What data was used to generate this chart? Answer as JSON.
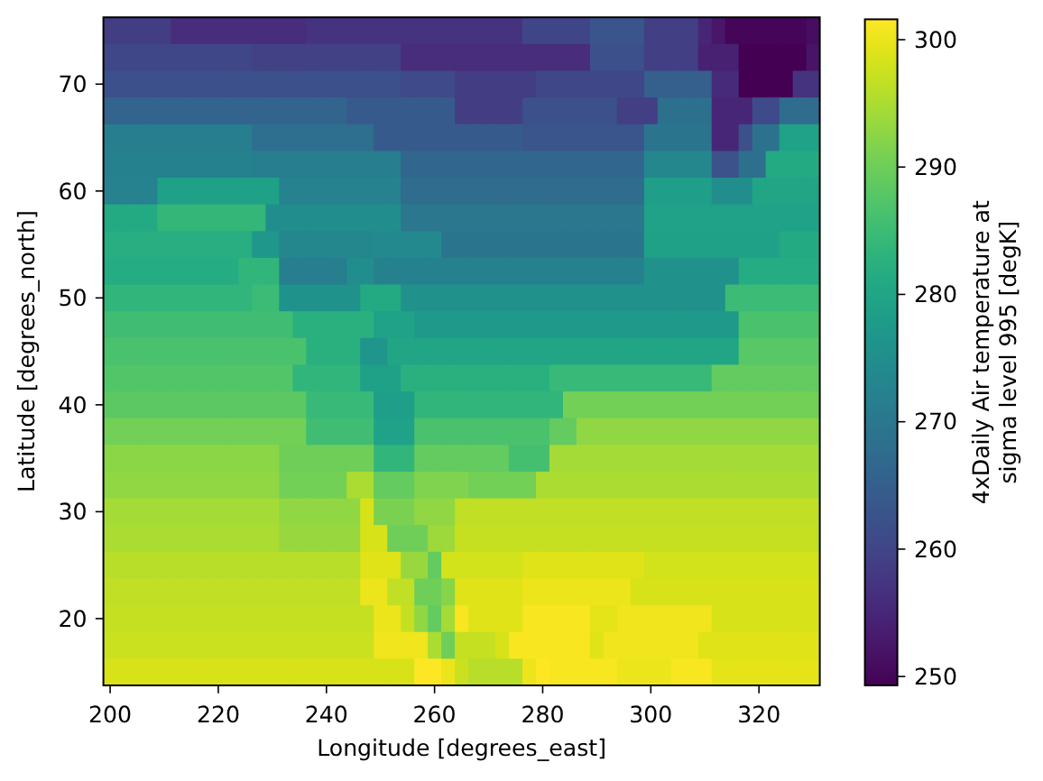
{
  "chart_data": {
    "type": "heatmap",
    "xlabel": "Longitude [degrees_east]",
    "ylabel": "Latitude [degrees_north]",
    "clabel": "4xDaily Air temperature at sigma level 995 [degK]",
    "categories": [
      "200",
      null,
      null,
      null,
      null,
      null,
      null,
      null,
      "220",
      null,
      null,
      null,
      null,
      null,
      null,
      null,
      "240",
      null,
      null,
      null,
      null,
      null,
      null,
      null,
      "260",
      null,
      null,
      null,
      null,
      null,
      null,
      null,
      "280",
      null,
      null,
      null,
      null,
      null,
      null,
      null,
      "300",
      null,
      null,
      null,
      null,
      null,
      null,
      null,
      "320",
      null,
      null,
      null,
      null
    ],
    "y_categories": [
      null,
      null,
      "70",
      null,
      null,
      null,
      "60",
      null,
      null,
      null,
      "50",
      null,
      null,
      null,
      "40",
      null,
      null,
      null,
      "30",
      null,
      null,
      null,
      "20",
      null,
      null
    ],
    "clim": [
      249.3,
      301.6
    ],
    "cticks": [
      250,
      260,
      270,
      280,
      290,
      300
    ],
    "cells": [
      [
        258.5,
        258.5,
        258.5,
        258.5,
        258.5,
        256,
        256,
        256,
        256,
        256,
        256,
        256,
        256,
        256,
        256,
        257,
        257,
        257,
        257,
        257,
        257,
        257,
        257,
        257,
        257,
        257,
        257,
        257,
        257,
        257,
        257,
        260,
        260,
        260,
        260,
        260,
        263,
        263,
        263,
        263,
        259,
        259,
        259,
        259,
        255,
        252.5,
        250,
        250,
        250,
        250,
        250,
        250,
        251
      ],
      [
        260.5,
        260.5,
        260.5,
        260.5,
        260.5,
        260.5,
        260.5,
        260.5,
        260.5,
        260.5,
        260.5,
        259.5,
        259.5,
        259.5,
        259.5,
        259.5,
        259.5,
        259.5,
        259.5,
        259.5,
        259.5,
        259.5,
        256,
        256,
        256,
        256,
        256,
        256,
        256,
        256,
        256,
        256,
        256,
        256,
        256,
        256,
        262,
        262,
        262,
        262,
        259,
        259,
        259,
        259,
        254,
        254,
        254,
        249.5,
        249.5,
        249.5,
        249.5,
        249.5,
        252
      ],
      [
        262,
        262,
        262,
        262,
        262,
        262,
        262,
        262,
        262,
        262,
        262,
        262,
        262,
        262,
        262,
        262,
        262,
        262,
        262,
        262,
        262,
        262,
        261,
        261,
        261,
        261,
        258.5,
        258.5,
        258.5,
        258.5,
        258.5,
        258.5,
        260.5,
        260.5,
        260.5,
        260.5,
        260.5,
        260.5,
        260.5,
        260.5,
        265,
        265,
        265,
        265,
        265,
        255.5,
        255.5,
        249.5,
        249.5,
        249.5,
        249.5,
        257,
        257
      ],
      [
        266,
        266,
        266,
        266,
        266,
        266,
        266,
        266,
        266,
        266,
        266,
        266,
        266,
        266,
        266,
        266,
        266,
        266,
        264,
        264,
        264,
        264,
        264,
        264,
        264,
        264,
        258.5,
        258.5,
        258.5,
        258.5,
        258.5,
        262,
        262,
        262,
        262,
        262,
        262,
        262,
        259,
        259,
        259,
        268.5,
        268.5,
        268.5,
        268.5,
        255,
        255,
        255,
        261,
        261,
        267.5,
        267.5,
        267.5
      ],
      [
        271.5,
        271.5,
        271.5,
        271.5,
        271.5,
        271.5,
        271.5,
        271.5,
        271.5,
        271.5,
        271.5,
        268,
        268,
        268,
        268,
        268,
        268,
        268,
        268,
        268,
        264,
        264,
        264,
        264,
        264,
        264,
        264,
        264,
        264,
        264,
        264,
        263,
        263,
        263,
        263,
        263,
        263,
        263,
        263,
        263,
        269.5,
        269.5,
        269.5,
        269.5,
        269.5,
        255,
        255,
        262,
        269,
        269,
        279.5,
        279.5,
        279.5
      ],
      [
        272,
        272,
        272,
        272,
        272,
        272,
        272,
        272,
        272,
        272,
        272,
        271.5,
        271.5,
        271.5,
        271.5,
        271.5,
        271.5,
        271.5,
        271.5,
        271.5,
        271.5,
        271.5,
        266.5,
        266.5,
        266.5,
        266.5,
        266.5,
        266.5,
        266.5,
        266.5,
        266.5,
        266.5,
        266.5,
        266.5,
        266.5,
        266.5,
        266.5,
        266.5,
        266.5,
        266.5,
        273.5,
        273.5,
        273.5,
        273.5,
        273.5,
        262.5,
        262.5,
        268.5,
        268.5,
        281,
        281,
        281,
        281
      ],
      [
        272.5,
        272.5,
        272.5,
        272.5,
        279,
        279,
        279,
        279,
        279,
        279,
        279,
        279,
        279,
        272.5,
        272.5,
        272.5,
        272.5,
        272.5,
        272.5,
        272.5,
        272.5,
        272.5,
        267.5,
        267.5,
        267.5,
        267.5,
        267.5,
        267.5,
        267.5,
        267.5,
        267.5,
        267.5,
        267.5,
        267.5,
        267.5,
        267.5,
        267.5,
        267.5,
        267.5,
        267.5,
        278.5,
        278.5,
        278.5,
        278.5,
        278.5,
        275,
        275,
        275,
        280,
        280,
        280,
        280,
        280
      ],
      [
        281,
        281,
        281,
        281,
        284,
        284,
        284,
        284,
        284,
        284,
        284,
        284,
        275,
        275,
        275,
        275,
        275,
        275,
        275,
        275,
        275,
        275,
        270,
        270,
        270,
        270,
        270,
        270,
        270,
        270,
        270,
        270,
        270,
        270,
        270,
        270,
        270,
        270,
        270,
        270,
        279.5,
        279.5,
        279.5,
        279.5,
        279.5,
        279.5,
        279.5,
        279.5,
        279.5,
        279.5,
        279.5,
        279.5,
        279.5
      ],
      [
        282,
        282,
        282,
        282,
        282,
        282,
        282,
        282,
        282,
        282,
        282,
        277,
        277,
        273.5,
        273.5,
        273.5,
        273.5,
        273.5,
        273.5,
        273.5,
        274,
        274,
        274,
        274,
        274,
        269.5,
        269.5,
        269.5,
        269.5,
        269.5,
        269.5,
        269.5,
        269.5,
        269.5,
        269.5,
        269.5,
        269.5,
        269.5,
        269.5,
        269.5,
        279,
        279,
        279,
        279,
        279,
        279,
        279,
        279,
        279,
        279,
        281,
        281,
        281
      ],
      [
        281.5,
        281.5,
        281.5,
        281.5,
        281.5,
        281.5,
        281.5,
        281.5,
        281.5,
        281.5,
        283.5,
        283.5,
        283.5,
        271.5,
        271.5,
        271.5,
        271.5,
        271.5,
        275,
        275,
        272,
        272,
        272,
        272,
        272,
        272,
        272,
        272,
        272,
        272,
        272,
        272,
        272,
        272,
        272,
        272,
        272,
        272,
        272,
        272,
        275.5,
        275.5,
        275.5,
        275.5,
        275.5,
        275.5,
        275.5,
        281.5,
        281.5,
        281.5,
        281.5,
        281.5,
        281.5
      ],
      [
        283.5,
        283.5,
        283.5,
        283.5,
        283.5,
        283.5,
        283.5,
        283.5,
        283.5,
        283.5,
        283.5,
        285,
        285,
        276,
        276,
        276,
        276,
        276,
        276,
        281,
        281,
        281,
        275.5,
        275.5,
        275.5,
        275.5,
        275.5,
        275.5,
        275.5,
        275.5,
        275.5,
        275.5,
        275.5,
        275.5,
        275.5,
        275.5,
        275.5,
        275.5,
        275.5,
        275.5,
        275.5,
        275.5,
        275.5,
        275.5,
        275.5,
        275.5,
        285,
        285,
        285,
        285,
        285,
        285,
        285
      ],
      [
        285.5,
        285.5,
        285.5,
        285.5,
        285.5,
        285.5,
        285.5,
        285.5,
        285.5,
        285.5,
        285.5,
        285.5,
        285.5,
        285.5,
        282.5,
        282.5,
        282.5,
        282.5,
        282.5,
        282.5,
        279.5,
        279.5,
        279.5,
        277.5,
        277.5,
        277.5,
        277.5,
        277.5,
        277.5,
        277.5,
        277.5,
        277.5,
        277.5,
        277.5,
        277.5,
        277.5,
        277.5,
        277.5,
        277.5,
        277.5,
        277.5,
        277.5,
        277.5,
        277.5,
        277.5,
        277.5,
        277.5,
        286.5,
        286.5,
        286.5,
        286.5,
        286.5,
        286.5
      ],
      [
        286.5,
        286.5,
        286.5,
        286.5,
        286.5,
        286.5,
        286.5,
        286.5,
        286.5,
        286.5,
        286.5,
        286.5,
        286.5,
        286.5,
        286.5,
        282.5,
        282.5,
        282.5,
        282.5,
        276.5,
        276.5,
        280,
        280,
        280,
        280,
        280,
        280,
        280,
        280,
        280,
        280,
        280,
        280,
        280,
        280,
        280,
        280,
        280,
        280,
        280,
        280,
        280,
        280,
        280,
        280,
        280,
        280,
        288,
        288,
        288,
        288,
        288,
        288
      ],
      [
        287.5,
        287.5,
        287.5,
        287.5,
        287.5,
        287.5,
        287.5,
        287.5,
        287.5,
        287.5,
        287.5,
        287.5,
        287.5,
        287.5,
        283.5,
        283.5,
        283.5,
        283.5,
        283.5,
        279,
        279,
        279,
        282.5,
        282.5,
        282.5,
        282.5,
        282.5,
        282.5,
        282.5,
        282.5,
        282.5,
        282.5,
        282.5,
        284.5,
        284.5,
        284.5,
        284.5,
        284.5,
        284.5,
        284.5,
        284.5,
        284.5,
        284.5,
        284.5,
        284.5,
        289,
        289,
        289,
        289,
        289,
        289,
        289,
        289
      ],
      [
        288.5,
        288.5,
        288.5,
        288.5,
        288.5,
        288.5,
        288.5,
        288.5,
        288.5,
        288.5,
        288.5,
        288.5,
        288.5,
        288.5,
        288.5,
        284.5,
        284.5,
        284.5,
        284.5,
        284.5,
        278.5,
        278.5,
        278.5,
        283.5,
        283.5,
        283.5,
        283.5,
        283.5,
        283.5,
        283.5,
        283.5,
        283.5,
        283.5,
        283.5,
        290.5,
        290.5,
        290.5,
        290.5,
        290.5,
        290.5,
        290.5,
        290.5,
        290.5,
        290.5,
        290.5,
        290.5,
        290.5,
        290.5,
        290.5,
        290.5,
        290.5,
        290.5,
        290.5
      ],
      [
        290.5,
        290.5,
        290.5,
        290.5,
        290.5,
        290.5,
        290.5,
        290.5,
        290.5,
        290.5,
        290.5,
        290.5,
        290.5,
        290.5,
        290.5,
        285.5,
        285.5,
        285.5,
        285.5,
        285.5,
        279.5,
        279.5,
        279.5,
        286.5,
        286.5,
        286.5,
        286.5,
        286.5,
        286.5,
        286.5,
        286.5,
        286.5,
        286.5,
        289,
        289,
        293,
        293,
        293,
        293,
        293,
        293,
        293,
        293,
        293,
        293,
        293,
        293,
        293,
        293,
        293,
        293,
        293,
        293
      ],
      [
        292.5,
        292.5,
        292.5,
        292.5,
        292.5,
        292.5,
        292.5,
        292.5,
        292.5,
        292.5,
        292.5,
        292.5,
        292.5,
        290,
        290,
        290,
        290,
        290,
        290,
        290,
        283.5,
        283.5,
        283.5,
        289,
        289,
        289,
        289,
        289,
        289,
        289,
        286,
        286,
        286,
        294.5,
        294.5,
        294.5,
        294.5,
        294.5,
        294.5,
        294.5,
        294.5,
        294.5,
        294.5,
        294.5,
        294.5,
        294.5,
        294.5,
        294.5,
        294.5,
        294.5,
        294.5,
        294.5,
        294.5
      ],
      [
        293,
        293,
        293,
        293,
        293,
        293,
        293,
        293,
        293,
        293,
        293,
        293,
        293,
        290.5,
        290.5,
        290.5,
        290.5,
        290.5,
        295,
        295,
        289,
        289,
        289,
        291.5,
        291.5,
        291.5,
        291.5,
        290.5,
        290.5,
        290.5,
        290.5,
        290.5,
        295,
        295,
        295,
        295,
        295,
        295,
        295,
        295,
        295,
        295,
        295,
        295,
        295,
        295,
        295,
        295,
        295,
        295,
        295,
        295,
        295
      ],
      [
        294.5,
        294.5,
        294.5,
        294.5,
        294.5,
        294.5,
        294.5,
        294.5,
        294.5,
        294.5,
        294.5,
        294.5,
        294.5,
        293,
        293,
        293,
        293,
        293,
        293,
        298.5,
        291,
        291,
        291,
        293,
        293,
        293,
        296.5,
        296.5,
        296.5,
        296.5,
        296.5,
        296.5,
        296.5,
        296.5,
        296.5,
        296.5,
        296.5,
        296.5,
        296.5,
        296.5,
        296.5,
        296.5,
        296.5,
        296.5,
        296.5,
        296.5,
        296.5,
        296.5,
        296.5,
        296.5,
        296.5,
        296.5,
        296.5
      ],
      [
        295,
        295,
        295,
        295,
        295,
        295,
        295,
        295,
        295,
        295,
        295,
        295,
        295,
        293.5,
        293.5,
        293.5,
        293.5,
        293.5,
        293.5,
        298.5,
        298.5,
        290,
        290,
        290,
        294,
        294,
        297,
        297,
        297,
        297,
        297,
        297,
        297,
        297,
        297,
        297,
        297,
        297,
        297,
        297,
        297,
        297,
        297,
        297,
        297,
        297,
        297,
        297,
        297,
        297,
        297,
        297,
        297
      ],
      [
        296,
        296,
        296,
        296,
        296,
        296,
        296,
        296,
        296,
        296,
        296,
        296,
        296,
        296,
        296,
        296,
        296,
        296,
        296,
        299,
        299,
        299,
        293.5,
        293.5,
        289,
        298,
        298,
        298,
        298,
        298,
        298,
        299,
        299,
        299,
        299,
        299,
        299,
        299,
        299,
        299,
        298,
        298,
        298,
        298,
        298,
        298,
        298,
        298,
        298,
        298,
        298,
        298,
        298
      ],
      [
        296.5,
        296.5,
        296.5,
        296.5,
        296.5,
        296.5,
        296.5,
        296.5,
        296.5,
        296.5,
        296.5,
        296.5,
        296.5,
        296.5,
        296.5,
        296.5,
        296.5,
        296.5,
        296.5,
        300,
        300,
        296.5,
        296.5,
        290,
        290,
        292,
        299,
        299,
        299,
        299,
        299,
        300,
        300,
        300,
        300,
        300,
        300,
        300,
        300,
        298.5,
        298.5,
        298.5,
        298.5,
        298.5,
        298.5,
        298.5,
        298.5,
        298.5,
        298.5,
        298.5,
        298.5,
        298.5,
        298.5
      ],
      [
        297,
        297,
        297,
        297,
        297,
        297,
        297,
        297,
        297,
        297,
        297,
        297,
        297,
        297,
        297,
        297,
        297,
        297,
        297,
        297,
        300,
        300,
        297,
        293,
        289,
        294.5,
        301,
        299,
        299,
        299,
        299,
        301,
        301,
        301,
        301,
        301,
        299.5,
        299.5,
        300.5,
        300.5,
        300.5,
        300.5,
        300.5,
        300.5,
        300.5,
        298.5,
        298.5,
        298.5,
        298.5,
        298.5,
        298.5,
        298.5,
        298.5
      ],
      [
        297.5,
        297.5,
        297.5,
        297.5,
        297.5,
        297.5,
        297.5,
        297.5,
        297.5,
        297.5,
        297.5,
        297.5,
        297.5,
        297.5,
        297.5,
        297.5,
        297.5,
        297.5,
        297.5,
        297.5,
        300.5,
        300.5,
        300.5,
        300.5,
        295,
        290,
        297,
        297,
        297,
        298.5,
        301,
        301,
        301,
        301,
        301,
        301,
        299,
        300.5,
        300.5,
        300.5,
        300.5,
        300.5,
        300.5,
        300.5,
        299,
        299,
        299,
        299,
        299,
        299,
        299,
        299,
        299
      ],
      [
        298.5,
        298.5,
        298.5,
        298.5,
        298.5,
        298.5,
        298.5,
        298.5,
        298.5,
        298.5,
        298.5,
        298.5,
        298.5,
        298.5,
        298.5,
        298.5,
        298.5,
        298.5,
        298.5,
        298.5,
        298.5,
        298.5,
        298.5,
        301.5,
        301.5,
        300,
        297.5,
        296,
        296,
        296,
        296,
        300,
        301.5,
        301,
        301,
        301,
        301,
        301,
        300,
        300,
        300,
        300,
        301,
        301,
        301,
        299.5,
        299.5,
        299.5,
        299.5,
        299.5,
        299.5,
        299.5,
        299.5
      ]
    ]
  }
}
